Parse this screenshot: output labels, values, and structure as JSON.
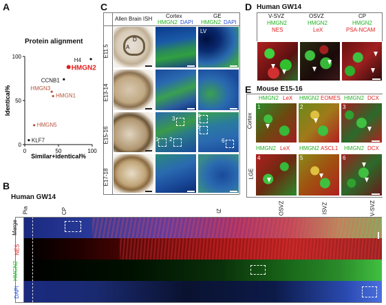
{
  "panelA": {
    "letter": "A",
    "title": "Protein alignment",
    "ylabel": "Identical%",
    "xlabel": "Similar+identical%",
    "yticks": [
      "100",
      "50",
      "0"
    ],
    "xticks": [
      "0",
      "50",
      "100"
    ]
  },
  "chart_data": {
    "type": "scatter",
    "title": "Protein alignment",
    "xlabel": "Similar+identical%",
    "ylabel": "Identical%",
    "xlim": [
      0,
      100
    ],
    "ylim": [
      0,
      100
    ],
    "points": [
      {
        "label": "H4",
        "x": 98,
        "y": 97,
        "color": "#111111"
      },
      {
        "label": "HMGN2",
        "x": 65,
        "y": 88,
        "color": "#e02020"
      },
      {
        "label": "CCNB1",
        "x": 58,
        "y": 74,
        "color": "#111111"
      },
      {
        "label": "HMGN3",
        "x": 40,
        "y": 60,
        "color": "#b5533c"
      },
      {
        "label": "HMGN1",
        "x": 42,
        "y": 55,
        "color": "#b5533c"
      },
      {
        "label": "HMGN5",
        "x": 14,
        "y": 22,
        "color": "#b5533c"
      },
      {
        "label": "KLF7",
        "x": 6,
        "y": 5,
        "color": "#111111"
      }
    ]
  },
  "panelB": {
    "letter": "B",
    "title": "Human GW14",
    "rows": [
      "Merge",
      "NES",
      "HMGN2",
      "DAPI"
    ],
    "zones": [
      "Pia",
      "CP",
      "IZ",
      "OSVZ",
      "ISVZ",
      "V-SVZ"
    ]
  },
  "panelC": {
    "letter": "C",
    "col1": "Allen Brain ISH",
    "col2_title": "Cortex",
    "col2_stain_a": "HMGN2",
    "col2_stain_b": "DAPI",
    "col3_title": "GE",
    "col3_stain_a": "HMGN2",
    "col3_stain_b": "DAPI",
    "rows": [
      "E11.5",
      "E13-14",
      "E15-16",
      "E17-18"
    ],
    "axis_d": "D",
    "axis_a": "A",
    "lv": "LV",
    "boxes": [
      "1",
      "2",
      "3",
      "4",
      "5",
      "6"
    ]
  },
  "panelD": {
    "letter": "D",
    "title": "Human GW14",
    "cols": [
      {
        "zone": "V-SVZ",
        "a": "HMGN2",
        "b": "NES"
      },
      {
        "zone": "OSVZ",
        "a": "HMGN2",
        "b": "LeX"
      },
      {
        "zone": "CP",
        "a": "HMGN2",
        "b": "PSA-NCAM"
      }
    ]
  },
  "panelE": {
    "letter": "E",
    "title": "Mouse E15-16",
    "top": [
      {
        "a": "HMGN2",
        "b": "LeX",
        "n": "1"
      },
      {
        "a": "HMGN2",
        "b": "EOMES",
        "n": "2"
      },
      {
        "a": "HMGN2",
        "b": "DCX",
        "n": "3"
      }
    ],
    "bottom": [
      {
        "a": "HMGN2",
        "b": "LeX",
        "n": "4"
      },
      {
        "a": "HMGN2",
        "b": "ASCL1",
        "n": "5"
      },
      {
        "a": "HMGN2",
        "b": "DCX",
        "n": "6"
      }
    ],
    "rowlabels": [
      "Cortex",
      "LGE"
    ]
  },
  "colors": {
    "green": "#22b022",
    "red": "#e22020",
    "blue": "#2a52d8",
    "hmgn": "#b5533c",
    "accent": "#e02020"
  }
}
